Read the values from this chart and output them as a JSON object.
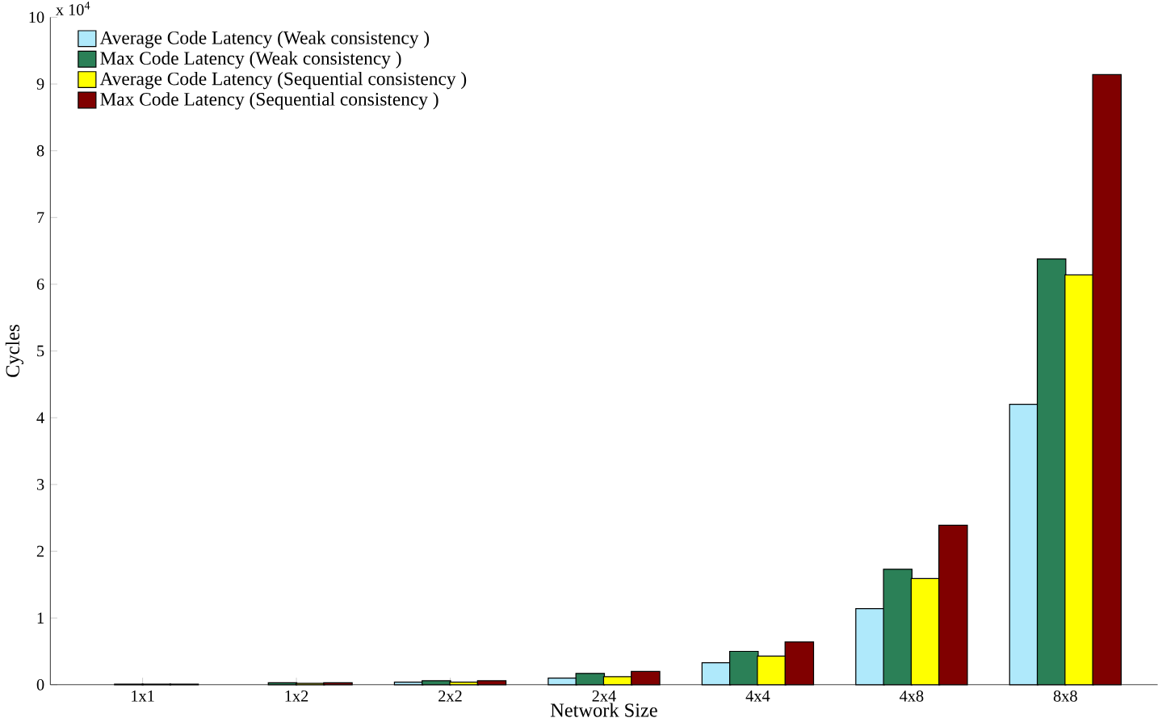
{
  "chart_data": {
    "type": "bar",
    "xlabel": "Network Size",
    "ylabel": "Cycles",
    "annotations": [
      "x 10$^{4}$"
    ],
    "categories": [
      "1x1",
      "1x2",
      "2x2",
      "2x4",
      "4x4",
      "4x8",
      "8x8"
    ],
    "series": [
      {
        "name": "Average Code Latency (Weak consistency )",
        "color": "#afe9fb",
        "values": [
          null,
          null,
          0.04,
          0.1,
          0.33,
          1.14,
          4.2
        ]
      },
      {
        "name": "Max Code Latency (Weak consistency )",
        "color": "#2b8057",
        "values": [
          0.01,
          0.03,
          0.06,
          0.17,
          0.5,
          1.73,
          6.38
        ]
      },
      {
        "name": "Average Code Latency (Sequential consistency )",
        "color": "#ffff00",
        "values": [
          0.01,
          0.02,
          0.04,
          0.12,
          0.43,
          1.59,
          6.14
        ]
      },
      {
        "name": "Max Code Latency (Sequential consistency )",
        "color": "#800000",
        "values": [
          0.01,
          0.03,
          0.06,
          0.2,
          0.64,
          2.39,
          9.14
        ]
      }
    ],
    "ylim": [
      0,
      10
    ],
    "yticks": [
      0,
      1,
      2,
      3,
      4,
      5,
      6,
      7,
      8,
      9,
      10
    ],
    "grid": false,
    "legend": "top left"
  }
}
